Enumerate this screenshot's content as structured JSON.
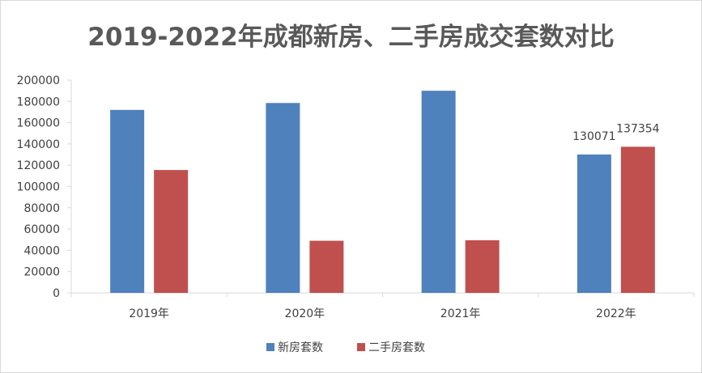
{
  "chart_data": {
    "type": "bar",
    "title": "2019-2022年成都新房、二手房成交套数对比",
    "categories": [
      "2019年",
      "2020年",
      "2021年",
      "2022年"
    ],
    "series": [
      {
        "name": "新房套数",
        "color": "#4f81bd",
        "values": [
          172000,
          178500,
          190000,
          130071
        ]
      },
      {
        "name": "二手房套数",
        "color": "#c0504d",
        "values": [
          115500,
          49000,
          49500,
          137354
        ]
      }
    ],
    "data_labels": [
      {
        "series": 0,
        "category": 3,
        "text": "130071"
      },
      {
        "series": 1,
        "category": 3,
        "text": "137354"
      }
    ],
    "ylim": [
      0,
      200000
    ],
    "y_ticks": [
      "0",
      "20000",
      "40000",
      "60000",
      "80000",
      "100000",
      "120000",
      "140000",
      "160000",
      "180000",
      "200000"
    ],
    "y_tick_values": [
      0,
      20000,
      40000,
      60000,
      80000,
      100000,
      120000,
      140000,
      160000,
      180000,
      200000
    ],
    "grid": false,
    "legend_position": "bottom"
  }
}
